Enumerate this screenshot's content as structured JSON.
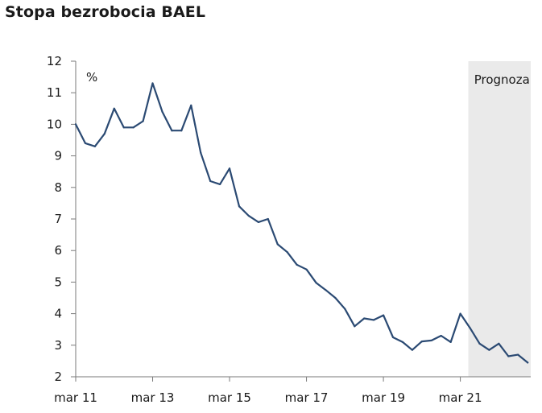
{
  "chart_data": {
    "type": "line",
    "title": "Stopa bezrobocia BAEL",
    "unit": "%",
    "forecast_label": "Prognoza",
    "x_tick_labels": [
      "mar 11",
      "mar 13",
      "mar 15",
      "mar 17",
      "mar 19",
      "mar 21"
    ],
    "x_tick_index": [
      0,
      8,
      16,
      24,
      32,
      40
    ],
    "forecast_start_index": 41,
    "ylim": [
      2,
      12
    ],
    "yticks": [
      2,
      3,
      4,
      5,
      6,
      7,
      8,
      9,
      10,
      11,
      12
    ],
    "grid": false,
    "series": [
      {
        "color": "#2b4a73",
        "values": [
          10.0,
          9.4,
          9.3,
          9.7,
          10.5,
          9.9,
          9.9,
          10.1,
          11.3,
          10.4,
          9.8,
          9.8,
          10.6,
          9.1,
          8.2,
          8.1,
          8.6,
          7.4,
          7.1,
          6.9,
          7.0,
          6.2,
          5.95,
          5.55,
          5.4,
          4.98,
          4.75,
          4.5,
          4.15,
          3.6,
          3.85,
          3.8,
          3.95,
          3.25,
          3.1,
          2.85,
          3.12,
          3.15,
          3.3,
          3.1,
          4.0,
          3.55,
          3.05,
          2.85,
          3.05,
          2.65,
          2.7,
          2.45
        ]
      }
    ]
  }
}
